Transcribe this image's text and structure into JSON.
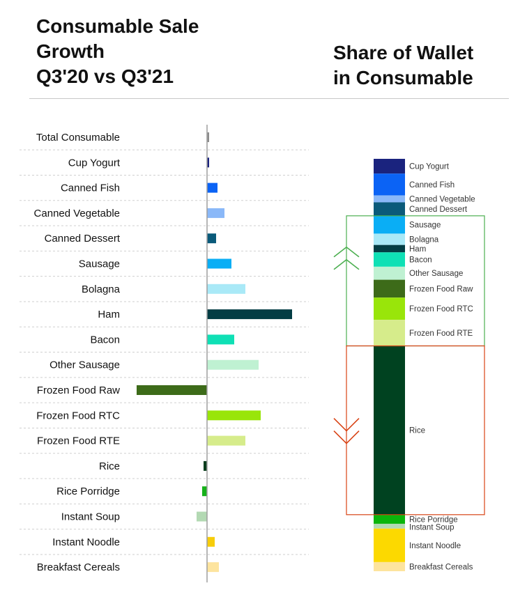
{
  "title_left": [
    "Consumable Sale",
    "Growth",
    "Q3'20 vs Q3'21"
  ],
  "title_right": [
    "Share of Wallet",
    "in Consumable"
  ],
  "chart_data": [
    {
      "type": "bar",
      "orientation": "horizontal",
      "title": "Consumable Sale Growth Q3'20 vs Q3'21",
      "categories": [
        "Total Consumable",
        "Cup Yogurt",
        "Canned Fish",
        "Canned Vegetable",
        "Canned Dessert",
        "Sausage",
        "Bolagna",
        "Ham",
        "Bacon",
        "Other Sausage",
        "Frozen Food Raw",
        "Frozen Food RTC",
        "Frozen Food RTE",
        "Rice",
        "Rice Porridge",
        "Instant Soup",
        "Instant Noodle",
        "Breakfast Cereals"
      ],
      "values": [
        3,
        3,
        15,
        25,
        13,
        35,
        55,
        122,
        39,
        74,
        -101,
        77,
        55,
        -5,
        -7,
        -15,
        11,
        17
      ],
      "colors": [
        "#8c8c8c",
        "#1a237e",
        "#0b63f5",
        "#8ab8f8",
        "#0a5a7a",
        "#0aaef5",
        "#a9e9f7",
        "#033d44",
        "#0fe0b5",
        "#bff1d2",
        "#3d6b19",
        "#99e50a",
        "#d6ec8b",
        "#0a3d1d",
        "#16b11a",
        "#b3d9b3",
        "#f7cd0a",
        "#fde49e"
      ],
      "xlabel": "",
      "ylabel": ""
    },
    {
      "type": "bar",
      "stacked": true,
      "title": "Share of Wallet in Consumable",
      "categories": [
        "Cup Yogurt",
        "Canned Fish",
        "Canned Vegetable",
        "Canned Dessert",
        "Sausage",
        "Bolagna",
        "Ham",
        "Bacon",
        "Other Sausage",
        "Frozen Food Raw",
        "Frozen Food RTC",
        "Frozen Food RTE",
        "Rice",
        "Rice Porridge",
        "Instant Soup",
        "Instant Noodle",
        "Breakfast Cereals"
      ],
      "values": [
        3.4,
        5.0,
        1.6,
        3.1,
        4.1,
        2.6,
        1.7,
        3.3,
        3.0,
        4.1,
        5.1,
        6.0,
        38.8,
        2.1,
        1.1,
        7.7,
        2.1
      ],
      "unit": "%",
      "colors": [
        "#1a237e",
        "#0b63f5",
        "#8ab8f8",
        "#0a5a7a",
        "#0aaef5",
        "#a9e9f7",
        "#033d44",
        "#0fe0b5",
        "#bff1d2",
        "#3d6b19",
        "#99e50a",
        "#d6ec8b",
        "#004220",
        "#0ab50a",
        "#b3d9b3",
        "#fcd900",
        "#fde49e"
      ],
      "annotations": [
        {
          "group": "up",
          "members": [
            "Sausage",
            "Bolagna",
            "Ham",
            "Bacon",
            "Other Sausage",
            "Frozen Food Raw",
            "Frozen Food RTC",
            "Frozen Food RTE"
          ],
          "color": "#4caf50",
          "symbol": "double-chevron-up"
        },
        {
          "group": "down",
          "members": [
            "Rice"
          ],
          "color": "#d84315",
          "symbol": "double-chevron-down"
        }
      ]
    }
  ]
}
